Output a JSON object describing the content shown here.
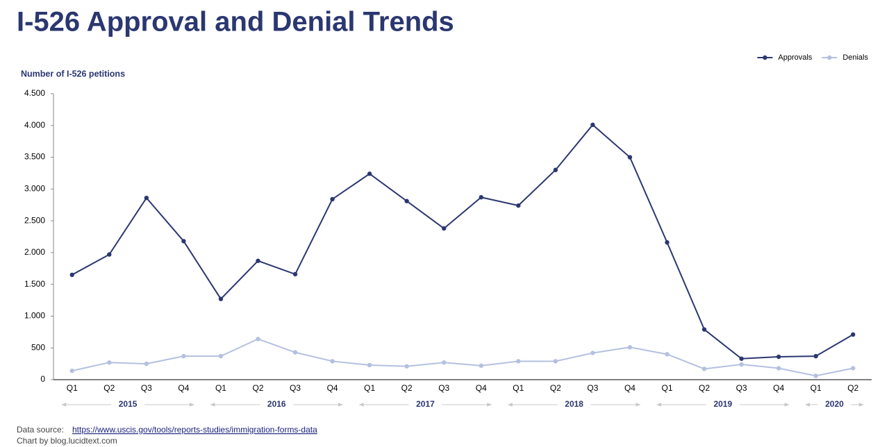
{
  "chart_data": {
    "type": "line",
    "title": "I-526 Approval and Denial Trends",
    "y_label": "Number of  I-526 petitions",
    "categories": [
      "Q1",
      "Q2",
      "Q3",
      "Q4",
      "Q1",
      "Q2",
      "Q3",
      "Q4",
      "Q1",
      "Q2",
      "Q3",
      "Q4",
      "Q1",
      "Q2",
      "Q3",
      "Q4",
      "Q1",
      "Q2",
      "Q3",
      "Q4",
      "Q1",
      "Q2"
    ],
    "years": [
      "2015",
      "2016",
      "2017",
      "2018",
      "2019",
      "2020"
    ],
    "series": [
      {
        "name": "Approvals",
        "color": "#2b3770",
        "values": [
          1650,
          1970,
          2860,
          2180,
          1270,
          1870,
          1660,
          2840,
          3240,
          2810,
          2380,
          2870,
          2740,
          3300,
          4010,
          3500,
          2160,
          790,
          330,
          360,
          370,
          710
        ]
      },
      {
        "name": "Denials",
        "color": "#b4c0e0",
        "values": [
          140,
          270,
          250,
          370,
          370,
          640,
          430,
          290,
          230,
          210,
          270,
          220,
          290,
          290,
          420,
          510,
          400,
          170,
          240,
          180,
          60,
          180
        ]
      }
    ],
    "ylim": [
      0,
      4500
    ],
    "yticks": [
      0,
      500,
      {
        "value": 1000,
        "label": "1.000"
      },
      {
        "value": 1500,
        "label": "1.500"
      },
      {
        "value": 2000,
        "label": "2.000"
      },
      {
        "value": 2500,
        "label": "2.500"
      },
      {
        "value": 3000,
        "label": "3.000"
      },
      {
        "value": 3500,
        "label": "3.500"
      },
      {
        "value": 4000,
        "label": "4.000"
      },
      {
        "value": 4500,
        "label": "4.500"
      }
    ],
    "grid": false,
    "legend": "top-right",
    "source_label": "Data source:",
    "source_url": "https://www.uscis.gov/tools/reports-studies/immigration-forms-data",
    "credit": "Chart by blog.lucidtext.com"
  }
}
